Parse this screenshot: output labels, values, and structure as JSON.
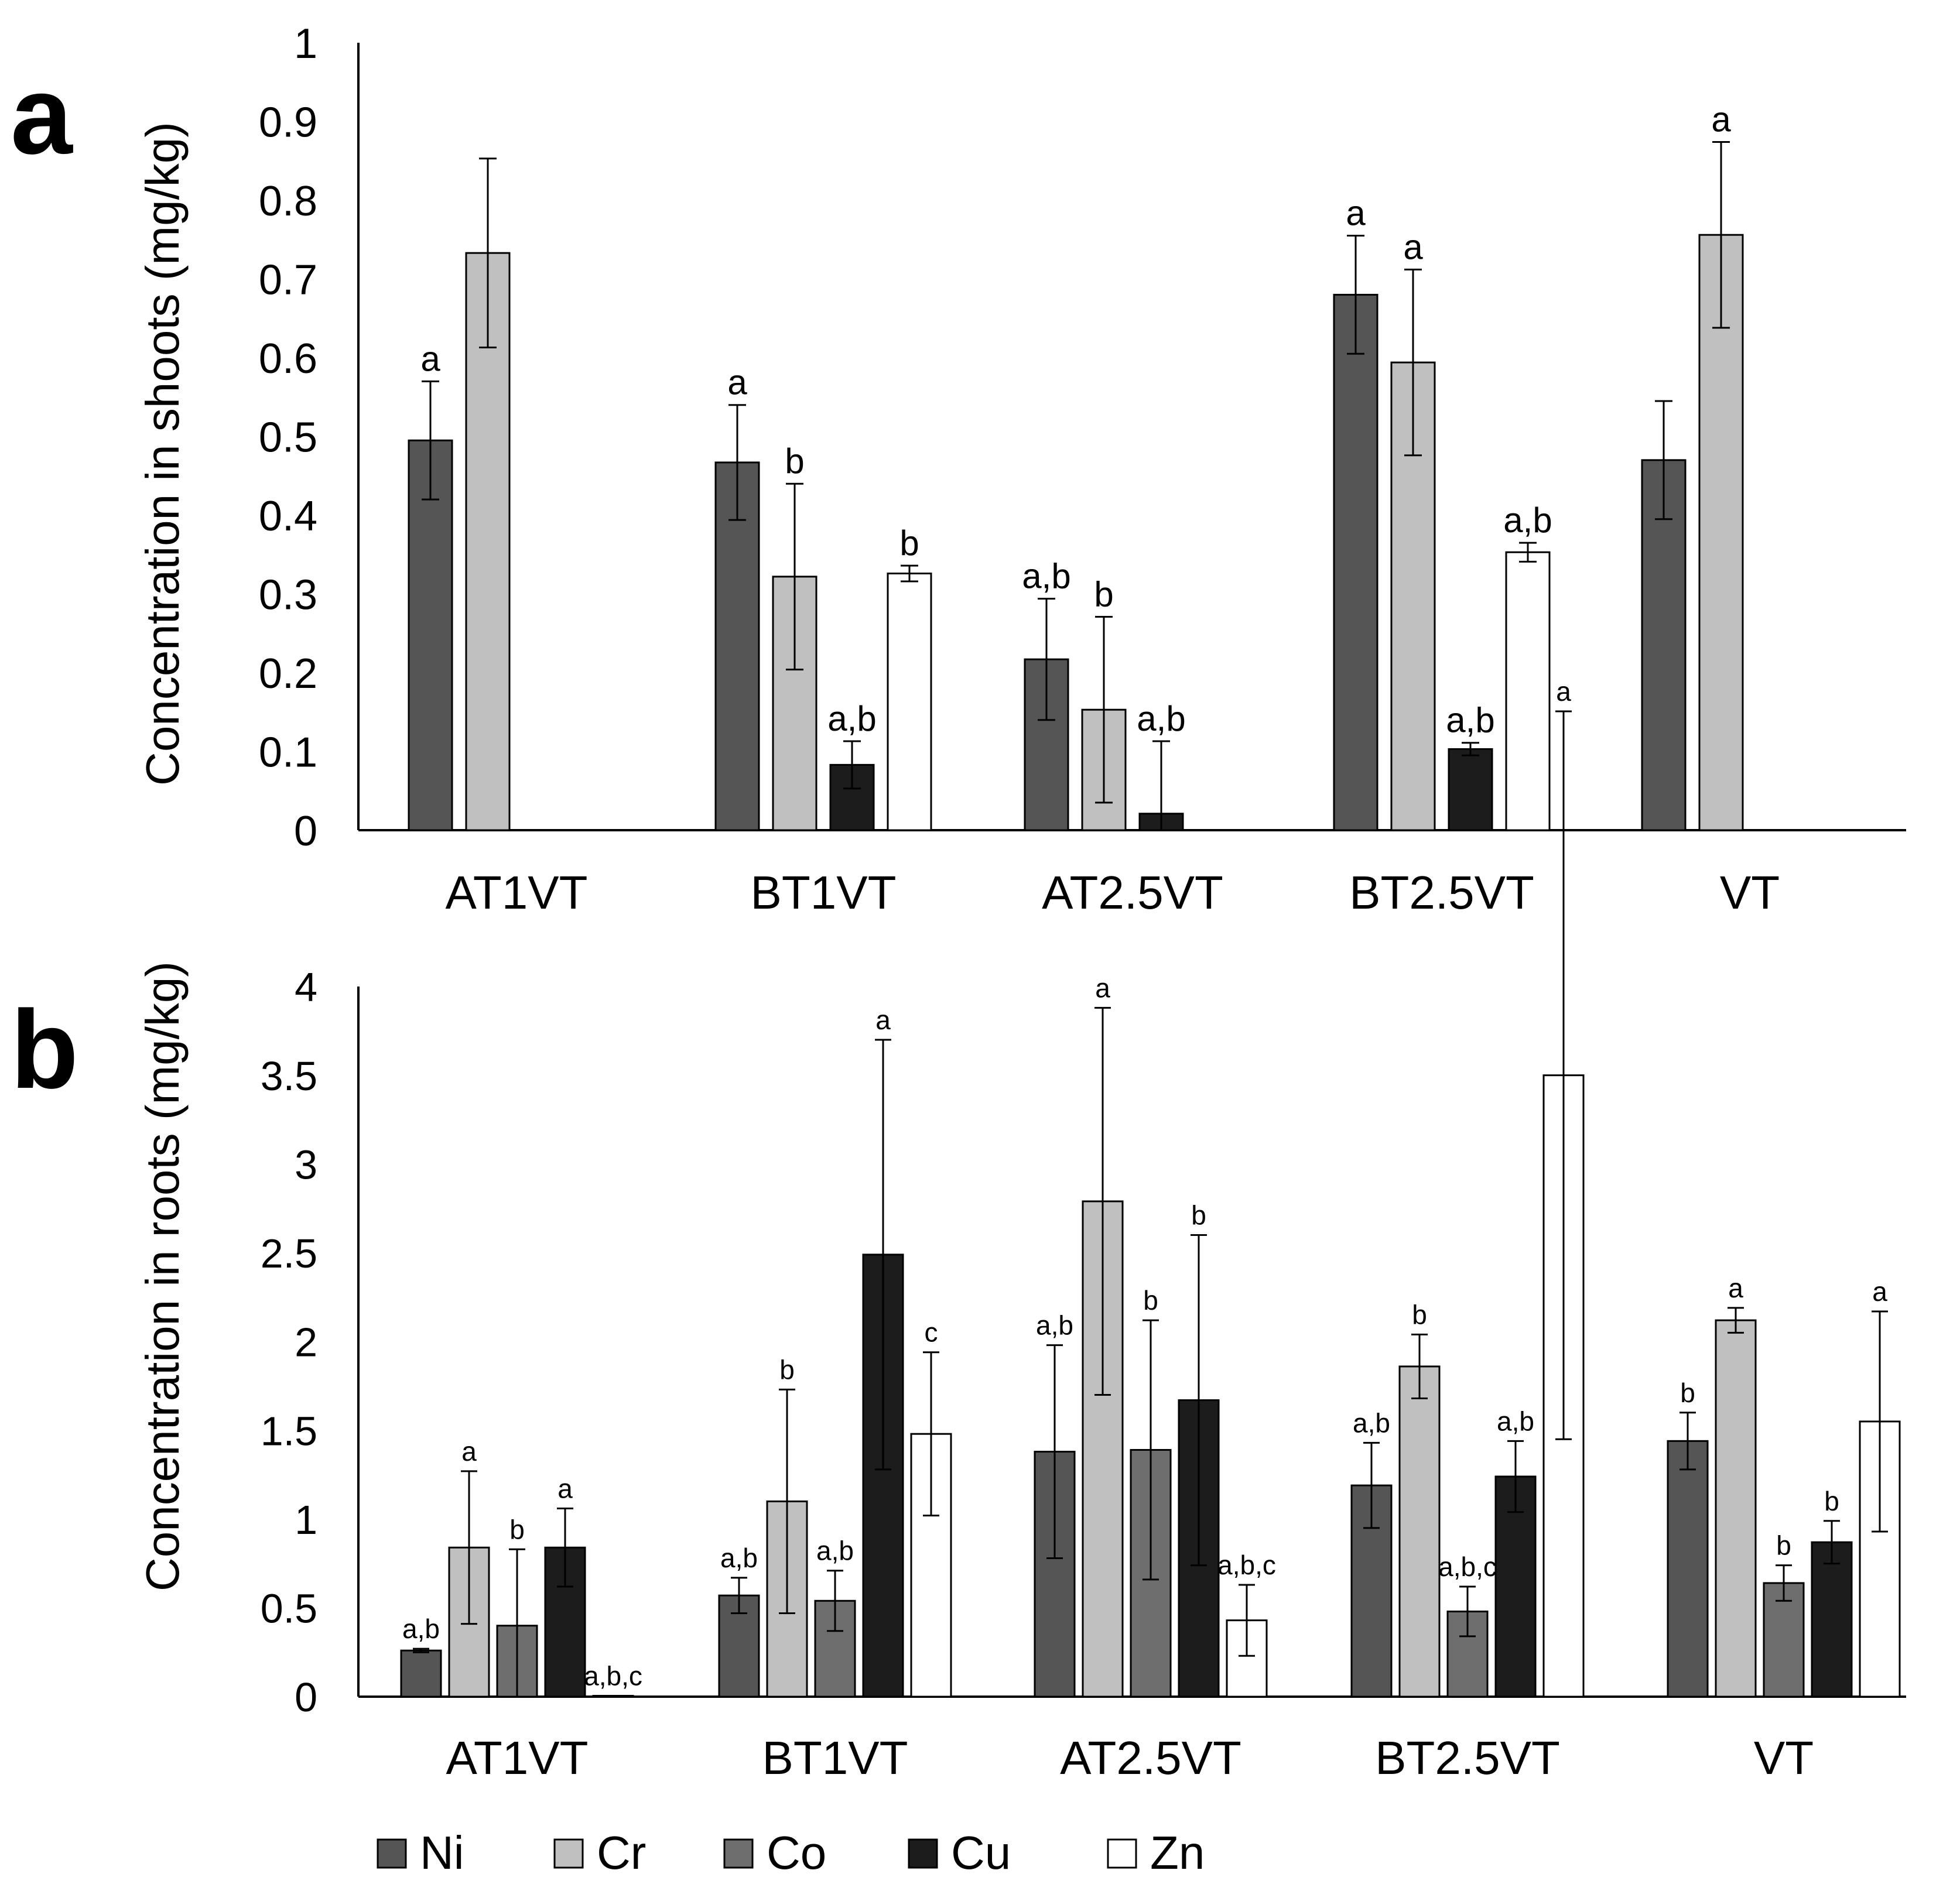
{
  "colors": {
    "Ni": "#555555",
    "Cr": "#c0c0c0",
    "Co": "#6e6e6e",
    "Cu": "#1c1c1c",
    "Zn": "#ffffff"
  },
  "legend": {
    "items": [
      {
        "name": "Ni",
        "label": "Ni"
      },
      {
        "name": "Cr",
        "label": "Cr"
      },
      {
        "name": "Co",
        "label": "Co"
      },
      {
        "name": "Cu",
        "label": "Cu"
      },
      {
        "name": "Zn",
        "label": "Zn"
      }
    ],
    "position": "bottom"
  },
  "chart_data": [
    {
      "panel": "a",
      "type": "bar",
      "ylabel": "Concentration in shoots (mg/kg)",
      "xlabel": "",
      "ylim": [
        0,
        1
      ],
      "yticks": [
        0,
        0.1,
        0.2,
        0.3,
        0.4,
        0.5,
        0.6,
        0.7,
        0.8,
        0.9,
        1
      ],
      "ytick_labels": [
        "0",
        "0.1",
        "0.2",
        "0.3",
        "0.4",
        "0.5",
        "0.6",
        "0.7",
        "0.8",
        "0.9",
        "1"
      ],
      "categories": [
        "AT1VT",
        "BT1VT",
        "AT2.5VT",
        "BT2.5VT",
        "VT"
      ],
      "series_order": [
        "Ni",
        "Cr",
        "Cu",
        "Zn"
      ],
      "series": [
        {
          "name": "Ni",
          "values": [
            0.495,
            0.467,
            0.217,
            0.68,
            0.47
          ],
          "errors": [
            0.075,
            0.073,
            0.077,
            0.075,
            0.075
          ],
          "labels": [
            "a",
            "a",
            "a,b",
            "a",
            ""
          ]
        },
        {
          "name": "Cr",
          "values": [
            0.733,
            0.322,
            0.153,
            0.594,
            0.756
          ],
          "errors": [
            0.12,
            0.118,
            0.118,
            0.118,
            0.118
          ],
          "labels": [
            "",
            "b",
            "b",
            "a",
            "a"
          ]
        },
        {
          "name": "Cu",
          "values": [
            null,
            0.083,
            0.021,
            0.103,
            null
          ],
          "errors": [
            null,
            0.03,
            0.092,
            0.008,
            null
          ],
          "labels": [
            "",
            "a,b",
            "a,b",
            "a,b",
            ""
          ]
        },
        {
          "name": "Zn",
          "values": [
            null,
            0.326,
            null,
            0.353,
            null
          ],
          "errors": [
            null,
            0.01,
            null,
            0.012,
            null
          ],
          "labels": [
            "",
            "b",
            "",
            "a,b",
            ""
          ]
        }
      ]
    },
    {
      "panel": "b",
      "type": "bar",
      "ylabel": "Concentration in roots (mg/kg)",
      "xlabel": "",
      "ylim": [
        0,
        4
      ],
      "yticks": [
        0,
        0.5,
        1,
        1.5,
        2,
        2.5,
        3,
        3.5,
        4
      ],
      "ytick_labels": [
        "0",
        "0.5",
        "1",
        "1.5",
        "2",
        "2.5",
        "3",
        "3.5",
        "4"
      ],
      "categories": [
        "AT1VT",
        "BT1VT",
        "AT2.5VT",
        "BT2.5VT",
        "VT"
      ],
      "series_order": [
        "Ni",
        "Cr",
        "Co",
        "Cu",
        "Zn"
      ],
      "series": [
        {
          "name": "Ni",
          "values": [
            0.26,
            0.57,
            1.38,
            1.19,
            1.44
          ],
          "errors": [
            0.01,
            0.1,
            0.6,
            0.24,
            0.16
          ],
          "labels": [
            "a,b",
            "a,b",
            "a,b",
            "a,b",
            "b"
          ]
        },
        {
          "name": "Cr",
          "values": [
            0.84,
            1.1,
            2.79,
            1.86,
            2.12
          ],
          "errors": [
            0.43,
            0.63,
            1.09,
            0.18,
            0.07
          ],
          "labels": [
            "a",
            "b",
            "a",
            "b",
            "a"
          ]
        },
        {
          "name": "Co",
          "values": [
            0.4,
            0.54,
            1.39,
            0.48,
            0.64
          ],
          "errors": [
            0.43,
            0.17,
            0.73,
            0.14,
            0.1
          ],
          "labels": [
            "b",
            "a,b",
            "b",
            "a,b,c",
            "b"
          ]
        },
        {
          "name": "Cu",
          "values": [
            0.84,
            2.49,
            1.67,
            1.24,
            0.87
          ],
          "errors": [
            0.22,
            1.21,
            0.93,
            0.2,
            0.12
          ],
          "labels": [
            "a",
            "a",
            "b",
            "a,b",
            "b"
          ]
        },
        {
          "name": "Zn",
          "values": [
            0.005,
            1.48,
            0.43,
            3.5,
            1.55
          ],
          "errors": [
            0.0,
            0.46,
            0.2,
            2.05,
            0.62
          ],
          "labels": [
            "a,b,c",
            "c",
            "a,b,c",
            "a",
            "a"
          ]
        }
      ]
    }
  ]
}
